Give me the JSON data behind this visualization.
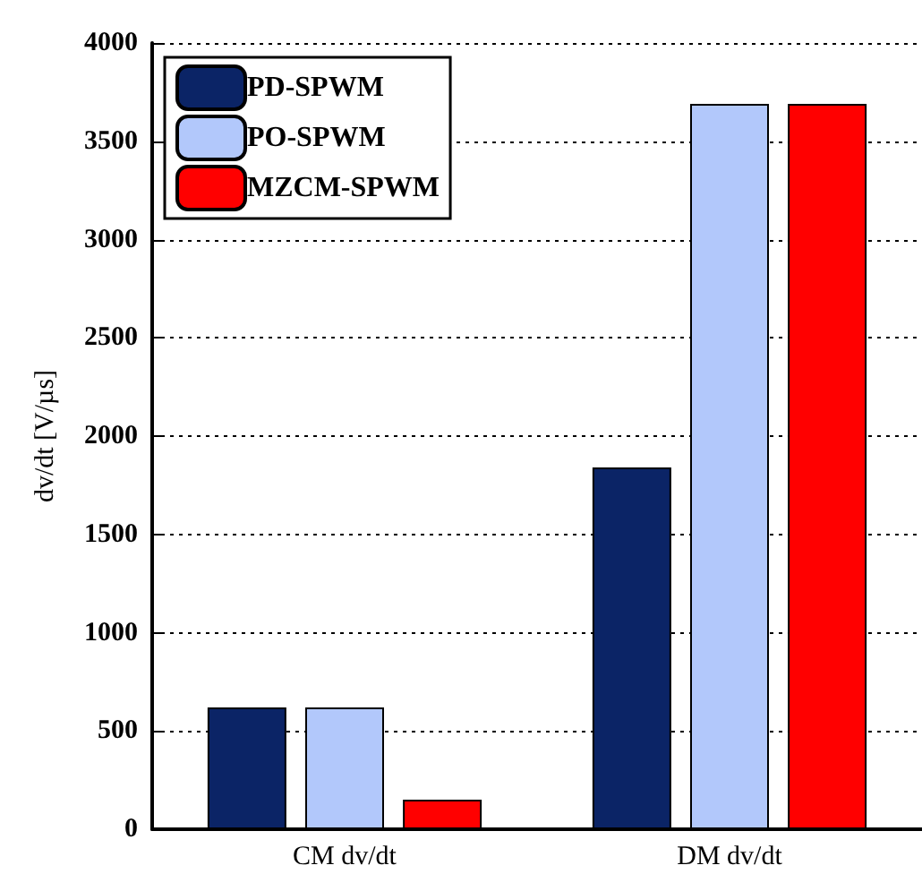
{
  "chart_data": {
    "type": "bar",
    "ylabel": "dv/dt [V/µs]",
    "categories": [
      "CM dv/dt",
      "DM dv/dt"
    ],
    "series": [
      {
        "name": "PD-SPWM",
        "color": "#0b2466",
        "values": [
          620,
          1840
        ]
      },
      {
        "name": "PO-SPWM",
        "color": "#b2c8fb",
        "values": [
          620,
          3690
        ]
      },
      {
        "name": "MZCM-SPWM",
        "color": "#ff0000",
        "values": [
          150,
          3690
        ]
      }
    ],
    "ylim": [
      0,
      4000
    ],
    "yticks": [
      0,
      500,
      1000,
      1500,
      2000,
      2500,
      3000,
      3500,
      4000
    ],
    "grid": "y",
    "legend": "top left"
  }
}
